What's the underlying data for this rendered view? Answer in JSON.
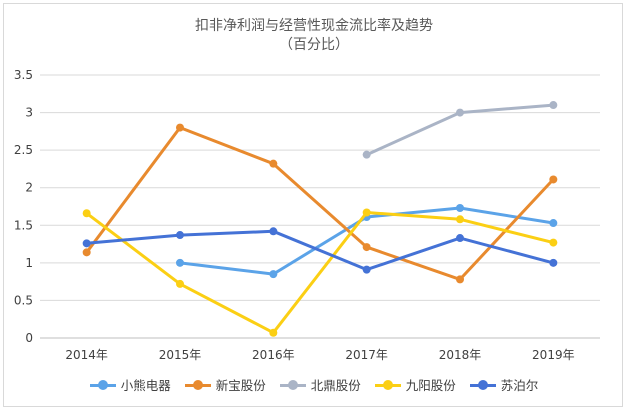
{
  "chart_data": {
    "type": "line",
    "title": "扣非净利润与经营性现金流比率及趋势",
    "subtitle": "（百分比）",
    "categories": [
      "2014年",
      "2015年",
      "2016年",
      "2017年",
      "2018年",
      "2019年"
    ],
    "yticks": [
      "0",
      "0.5",
      "1",
      "1.5",
      "2",
      "2.5",
      "3",
      "3.5"
    ],
    "ylim": [
      0,
      3.5
    ],
    "grid": true,
    "legend_position": "bottom",
    "series": [
      {
        "name": "小熊电器",
        "color": "#5BA3E8",
        "values": [
          null,
          1.0,
          0.85,
          1.61,
          1.73,
          1.53
        ]
      },
      {
        "name": "新宝股份",
        "color": "#E88A2E",
        "values": [
          1.14,
          2.8,
          2.32,
          1.21,
          0.78,
          2.11
        ]
      },
      {
        "name": "北鼎股份",
        "color": "#AAB4C6",
        "values": [
          null,
          null,
          null,
          2.44,
          3.0,
          3.1
        ]
      },
      {
        "name": "九阳股份",
        "color": "#FBCF14",
        "values": [
          1.66,
          0.72,
          0.07,
          1.67,
          1.58,
          1.27
        ]
      },
      {
        "name": "苏泊尔",
        "color": "#4472D6",
        "values": [
          1.26,
          1.37,
          1.42,
          0.91,
          1.33,
          1.0
        ]
      }
    ]
  }
}
